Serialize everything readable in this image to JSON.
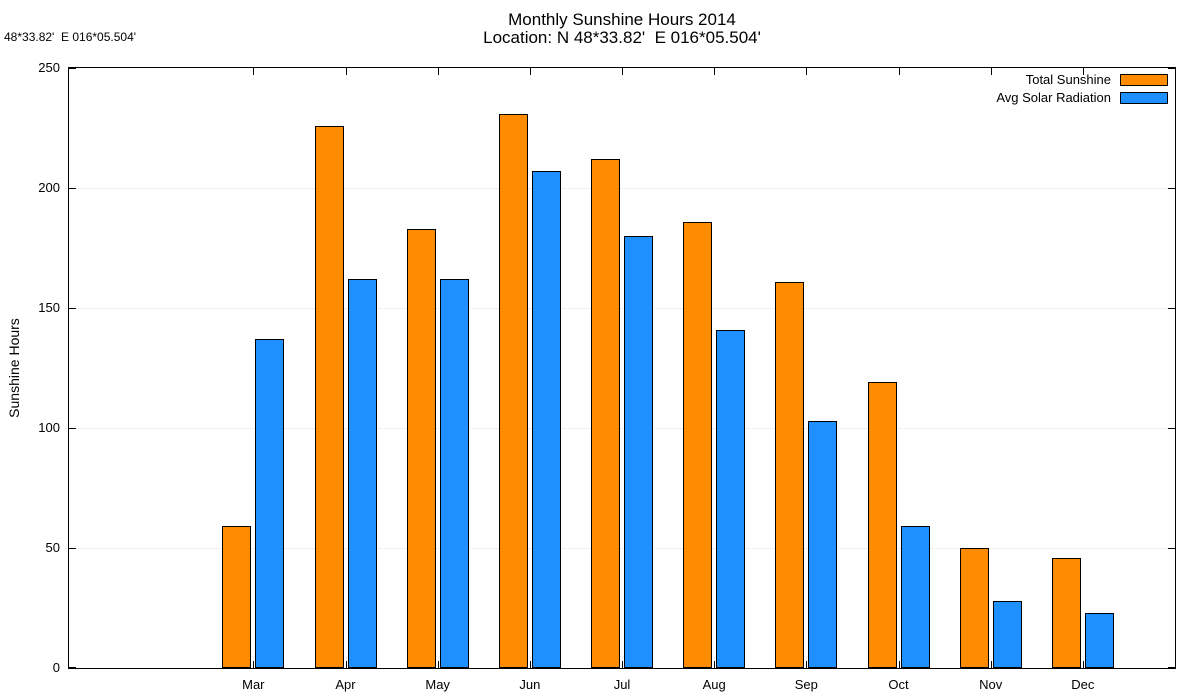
{
  "header": {
    "location_note": "48*33.82'  E 016*05.504'",
    "title_line1": "Monthly Sunshine Hours 2014",
    "title_line2": "Location: N 48*33.82'  E 016*05.504'"
  },
  "chart_data": {
    "type": "bar",
    "title": "Monthly Sunshine Hours 2014",
    "subtitle": "Location: N 48*33.82'  E 016*05.504'",
    "xlabel": "",
    "ylabel": "Sunshine Hours",
    "ylim": [
      0,
      250
    ],
    "yticks": [
      0,
      50,
      100,
      150,
      200,
      250
    ],
    "categories": [
      "Mar",
      "Apr",
      "May",
      "Jun",
      "Jul",
      "Aug",
      "Sep",
      "Oct",
      "Nov",
      "Dec"
    ],
    "x_slots_total": 12,
    "first_category_slot": 2,
    "grid": "faint horizontal dotted lines at 50,100,150,200",
    "legend_position": "top-right-inside",
    "series": [
      {
        "name": "Total Sunshine",
        "color": "#FF8C00",
        "values": [
          59,
          226,
          183,
          231,
          212,
          186,
          161,
          119,
          50,
          46
        ]
      },
      {
        "name": "Avg Solar Radiation",
        "color": "#1E90FF",
        "values": [
          137,
          162,
          162,
          207,
          180,
          141,
          103,
          59,
          28,
          23
        ]
      }
    ]
  }
}
